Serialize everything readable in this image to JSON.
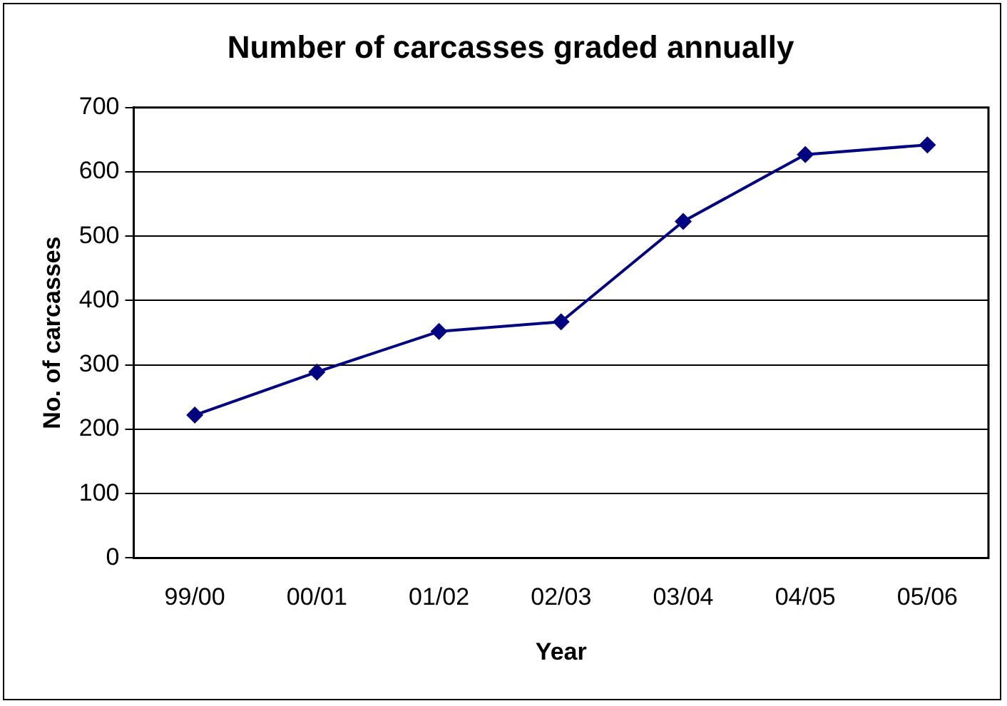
{
  "chart_data": {
    "type": "line",
    "title": "Number of carcasses graded annually",
    "xlabel": "Year",
    "ylabel": "No. of carcasses",
    "categories": [
      "99/00",
      "00/01",
      "01/02",
      "02/03",
      "03/04",
      "04/05",
      "05/06"
    ],
    "series": [
      {
        "color": "#000080",
        "values": [
          222,
          289,
          352,
          367,
          523,
          627,
          642
        ]
      }
    ],
    "ylim": [
      0,
      700
    ],
    "yticks": [
      0,
      100,
      200,
      300,
      400,
      500,
      600,
      700
    ],
    "grid": "y",
    "legend": false,
    "marker": "diamond",
    "line_style": "solid"
  }
}
